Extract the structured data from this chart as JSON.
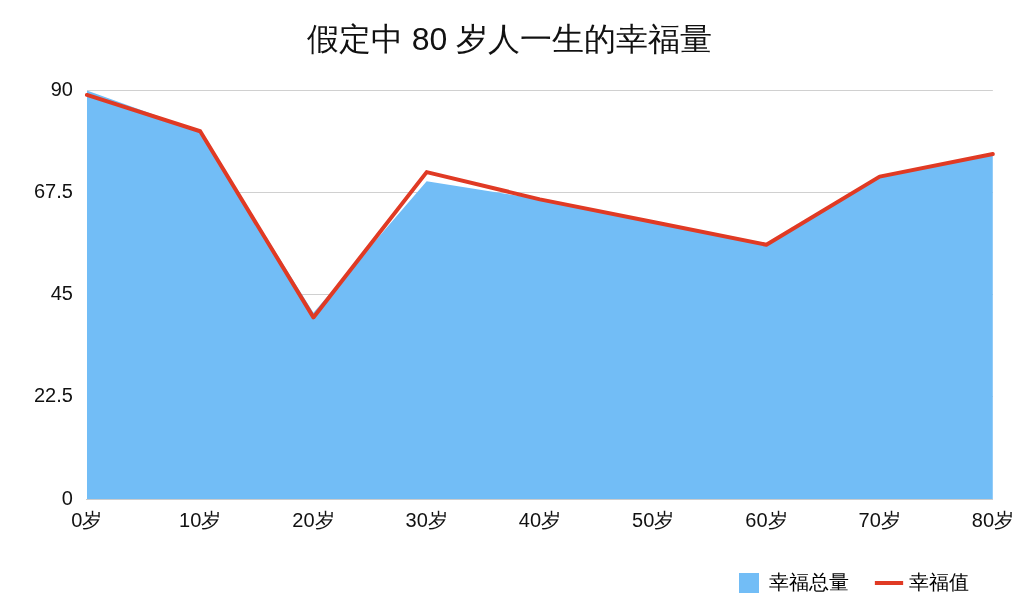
{
  "chart_data": {
    "type": "area",
    "title": "假定中 80 岁人一生的幸福量",
    "categories": [
      "0岁",
      "10岁",
      "20岁",
      "30岁",
      "40岁",
      "50岁",
      "60岁",
      "70岁",
      "80岁"
    ],
    "series": [
      {
        "name": "幸福总量",
        "color": "#72bdf6",
        "values": [
          90,
          81,
          41,
          70,
          66,
          61,
          56,
          71,
          76
        ]
      },
      {
        "name": "幸福值",
        "type": "line",
        "color": "#e03a24",
        "values": [
          89,
          81,
          40,
          72,
          66,
          61,
          56,
          71,
          76
        ]
      }
    ],
    "ylim": [
      0,
      90
    ],
    "yticks": [
      0,
      22.5,
      45,
      67.5,
      90
    ],
    "grid": "y",
    "legend": "bottom right",
    "marker": "none",
    "line_style": "solid"
  }
}
